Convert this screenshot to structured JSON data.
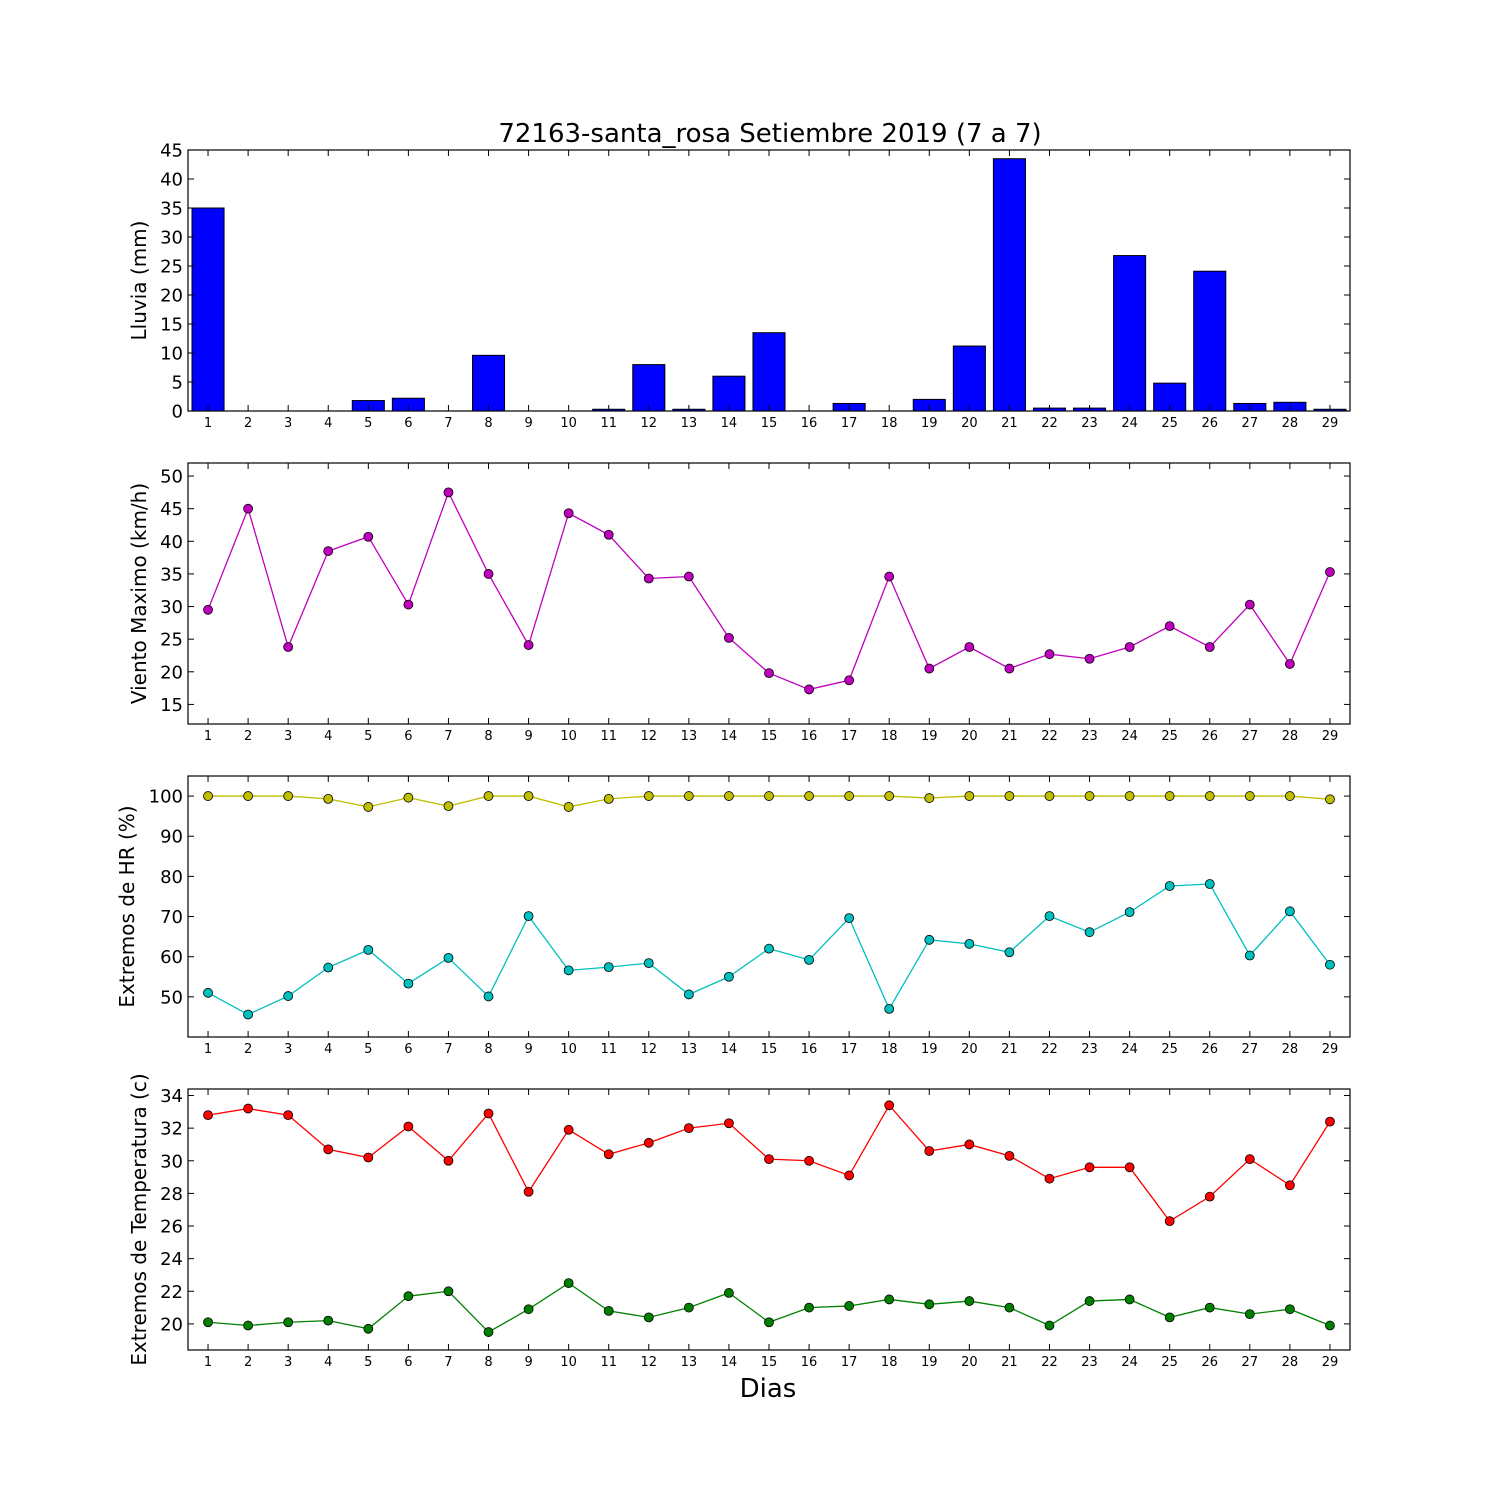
{
  "title": "72163-santa_rosa Setiembre 2019  (7 a 7)",
  "xlabel": "Dias",
  "chart_data": [
    {
      "type": "bar",
      "ylabel": "Lluvia (mm)",
      "ylim": [
        0,
        45
      ],
      "yticks": [
        0,
        5,
        10,
        15,
        20,
        25,
        30,
        35,
        40,
        45
      ],
      "x": [
        1,
        2,
        3,
        4,
        5,
        6,
        7,
        8,
        9,
        10,
        11,
        12,
        13,
        14,
        15,
        16,
        17,
        18,
        19,
        20,
        21,
        22,
        23,
        24,
        25,
        26,
        27,
        28,
        29
      ],
      "color": "#0000ff",
      "series": [
        {
          "values": [
            35.0,
            0,
            0,
            0,
            1.8,
            2.2,
            0,
            9.6,
            0,
            0,
            0.3,
            8.0,
            0.3,
            6.0,
            13.5,
            0,
            1.3,
            0,
            2.0,
            11.2,
            43.5,
            0.5,
            0.5,
            26.8,
            4.8,
            24.1,
            1.3,
            1.5,
            0.3
          ]
        }
      ]
    },
    {
      "type": "line",
      "ylabel": "Viento Maximo (km/h)",
      "ylim": [
        12,
        52
      ],
      "yticks": [
        15,
        20,
        25,
        30,
        35,
        40,
        45,
        50
      ],
      "x": [
        1,
        2,
        3,
        4,
        5,
        6,
        7,
        8,
        9,
        10,
        11,
        12,
        13,
        14,
        15,
        16,
        17,
        18,
        19,
        20,
        21,
        22,
        23,
        24,
        25,
        26,
        27,
        28,
        29
      ],
      "series": [
        {
          "color": "#bf00bf",
          "values": [
            29.5,
            45.0,
            23.8,
            38.5,
            40.7,
            30.3,
            47.5,
            35.0,
            24.1,
            44.3,
            41.0,
            34.3,
            34.6,
            25.2,
            19.8,
            17.3,
            18.7,
            34.6,
            20.5,
            23.8,
            20.5,
            22.7,
            22.0,
            23.8,
            27.0,
            23.8,
            30.3,
            21.2,
            35.3
          ]
        }
      ]
    },
    {
      "type": "line",
      "ylabel": "Extremos de HR (%)",
      "ylim": [
        40,
        105
      ],
      "yticks": [
        50,
        60,
        70,
        80,
        90,
        100
      ],
      "x": [
        1,
        2,
        3,
        4,
        5,
        6,
        7,
        8,
        9,
        10,
        11,
        12,
        13,
        14,
        15,
        16,
        17,
        18,
        19,
        20,
        21,
        22,
        23,
        24,
        25,
        26,
        27,
        28,
        29
      ],
      "series": [
        {
          "color": "#bfbf00",
          "values": [
            100,
            100,
            100,
            99.3,
            97.3,
            99.6,
            97.5,
            100,
            100,
            97.3,
            99.3,
            100,
            100,
            100,
            100,
            100,
            100,
            100,
            99.5,
            100,
            100,
            100,
            100,
            100,
            100,
            100,
            100,
            100,
            99.2
          ]
        },
        {
          "color": "#00bfbf",
          "values": [
            51.0,
            45.6,
            50.2,
            57.3,
            61.7,
            53.3,
            59.7,
            50.1,
            70.1,
            56.6,
            57.4,
            58.4,
            50.6,
            55.0,
            62.0,
            59.2,
            69.6,
            47.0,
            64.2,
            63.2,
            61.1,
            70.1,
            66.1,
            71.1,
            77.6,
            78.1,
            60.3,
            71.3,
            58.0
          ]
        }
      ]
    },
    {
      "type": "line",
      "ylabel": "Extremos de Temperatura (c)",
      "ylim": [
        18.4,
        34.4
      ],
      "yticks": [
        20,
        22,
        24,
        26,
        28,
        30,
        32,
        34
      ],
      "x": [
        1,
        2,
        3,
        4,
        5,
        6,
        7,
        8,
        9,
        10,
        11,
        12,
        13,
        14,
        15,
        16,
        17,
        18,
        19,
        20,
        21,
        22,
        23,
        24,
        25,
        26,
        27,
        28,
        29
      ],
      "series": [
        {
          "color": "#ff0000",
          "values": [
            32.8,
            33.2,
            32.8,
            30.7,
            30.2,
            32.1,
            30.0,
            32.9,
            28.1,
            31.9,
            30.4,
            31.1,
            32.0,
            32.3,
            30.1,
            30.0,
            29.1,
            33.4,
            30.6,
            31.0,
            30.3,
            28.9,
            29.6,
            29.6,
            26.3,
            27.8,
            30.1,
            28.5,
            32.4
          ]
        },
        {
          "color": "#008000",
          "values": [
            20.1,
            19.9,
            20.1,
            20.2,
            19.7,
            21.7,
            22.0,
            19.5,
            20.9,
            22.5,
            20.8,
            20.4,
            21.0,
            21.9,
            20.1,
            21.0,
            21.1,
            21.5,
            21.2,
            21.4,
            21.0,
            19.9,
            21.4,
            21.5,
            20.4,
            21.0,
            20.6,
            20.9,
            19.9
          ]
        }
      ]
    }
  ]
}
